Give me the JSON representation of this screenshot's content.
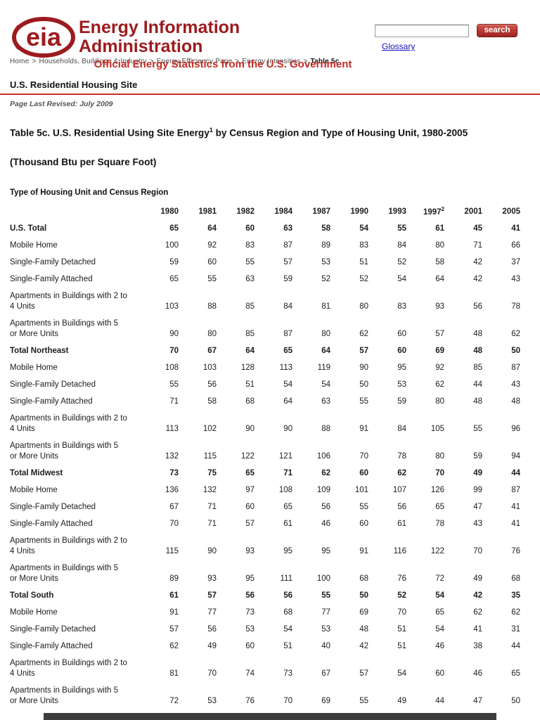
{
  "header": {
    "logo_text": "eia",
    "title": "Energy Information Administration",
    "subtitle": "Official Energy Statistics from the U.S. Government",
    "search": {
      "value": "",
      "button_label": "search",
      "glossary_label": "Glossary"
    }
  },
  "breadcrumb": {
    "separator": ">",
    "items": [
      "Home",
      "Households, Buildings & Industry",
      "Energy Efficiency Page",
      "Energy Intensities"
    ],
    "current": "Table 5c"
  },
  "page": {
    "section_title": "U.S. Residential Housing Site",
    "last_revised": "Page Last Revised: July 2009",
    "table_title": "Table 5c. U.S. Residential Using Site Energy",
    "table_title_superscript": "1",
    "table_title_rest": " by Census Region and Type of Housing Unit, 1980-2005",
    "units_line": "(Thousand Btu per Square Foot)"
  },
  "table": {
    "corner_label": "Type of Housing Unit  and Census Region",
    "years": [
      "1980",
      "1981",
      "1982",
      "1984",
      "1987",
      "1990",
      "1993",
      "1997",
      "2001",
      "2005"
    ],
    "year_superscript": {
      "index": 7,
      "text": "2"
    },
    "rows": [
      {
        "label_lines": [
          "U.S. Total"
        ],
        "bold": true,
        "values": [
          65,
          64,
          60,
          63,
          58,
          54,
          55,
          61,
          45,
          41
        ]
      },
      {
        "label_lines": [
          "Mobile Home"
        ],
        "bold": false,
        "values": [
          100,
          92,
          83,
          87,
          89,
          83,
          84,
          80,
          71,
          66
        ]
      },
      {
        "label_lines": [
          "Single-Family Detached"
        ],
        "bold": false,
        "values": [
          59,
          60,
          55,
          57,
          53,
          51,
          52,
          58,
          42,
          37
        ]
      },
      {
        "label_lines": [
          "Single-Family Attached"
        ],
        "bold": false,
        "values": [
          65,
          55,
          63,
          59,
          52,
          52,
          54,
          64,
          42,
          43
        ]
      },
      {
        "label_lines": [
          "Apartments in Buildings with 2 to",
          "4 Units"
        ],
        "bold": false,
        "values": [
          103,
          88,
          85,
          84,
          81,
          80,
          83,
          93,
          56,
          78
        ]
      },
      {
        "label_lines": [
          "Apartments in Buildings with 5",
          "or More Units"
        ],
        "bold": false,
        "values": [
          90,
          80,
          85,
          87,
          80,
          62,
          60,
          57,
          48,
          62
        ]
      },
      {
        "label_lines": [
          "Total Northeast"
        ],
        "bold": true,
        "values": [
          70,
          67,
          64,
          65,
          64,
          57,
          60,
          69,
          48,
          50
        ]
      },
      {
        "label_lines": [
          "Mobile Home"
        ],
        "bold": false,
        "values": [
          108,
          103,
          128,
          113,
          119,
          90,
          95,
          92,
          85,
          87
        ]
      },
      {
        "label_lines": [
          "Single-Family Detached"
        ],
        "bold": false,
        "values": [
          55,
          56,
          51,
          54,
          54,
          50,
          53,
          62,
          44,
          43
        ]
      },
      {
        "label_lines": [
          "Single-Family Attached"
        ],
        "bold": false,
        "values": [
          71,
          58,
          68,
          64,
          63,
          55,
          59,
          80,
          48,
          48
        ]
      },
      {
        "label_lines": [
          "Apartments in Buildings with 2 to",
          "4 Units"
        ],
        "bold": false,
        "values": [
          113,
          102,
          90,
          90,
          88,
          91,
          84,
          105,
          55,
          96
        ]
      },
      {
        "label_lines": [
          "Apartments in Buildings with 5",
          "or More Units"
        ],
        "bold": false,
        "values": [
          132,
          115,
          122,
          121,
          106,
          70,
          78,
          80,
          59,
          94
        ]
      },
      {
        "label_lines": [
          "Total Midwest"
        ],
        "bold": true,
        "values": [
          73,
          75,
          65,
          71,
          62,
          60,
          62,
          70,
          49,
          44
        ]
      },
      {
        "label_lines": [
          "Mobile Home"
        ],
        "bold": false,
        "values": [
          136,
          132,
          97,
          108,
          109,
          101,
          107,
          126,
          99,
          87
        ]
      },
      {
        "label_lines": [
          "Single-Family Detached"
        ],
        "bold": false,
        "values": [
          67,
          71,
          60,
          65,
          56,
          55,
          56,
          65,
          47,
          41
        ]
      },
      {
        "label_lines": [
          "Single-Family Attached"
        ],
        "bold": false,
        "values": [
          70,
          71,
          57,
          61,
          46,
          60,
          61,
          78,
          43,
          41
        ]
      },
      {
        "label_lines": [
          "Apartments in Buildings with 2 to",
          "4 Units"
        ],
        "bold": false,
        "values": [
          115,
          90,
          93,
          95,
          95,
          91,
          116,
          122,
          70,
          76
        ]
      },
      {
        "label_lines": [
          "Apartments in Buildings with 5",
          "or More Units"
        ],
        "bold": false,
        "values": [
          89,
          93,
          95,
          111,
          100,
          68,
          76,
          72,
          49,
          68
        ]
      },
      {
        "label_lines": [
          "Total South"
        ],
        "bold": true,
        "values": [
          61,
          57,
          56,
          56,
          55,
          50,
          52,
          54,
          42,
          35
        ]
      },
      {
        "label_lines": [
          "Mobile Home"
        ],
        "bold": false,
        "values": [
          91,
          77,
          73,
          68,
          77,
          69,
          70,
          65,
          62,
          62
        ]
      },
      {
        "label_lines": [
          "Single-Family Detached"
        ],
        "bold": false,
        "values": [
          57,
          56,
          53,
          54,
          53,
          48,
          51,
          54,
          41,
          31
        ]
      },
      {
        "label_lines": [
          "Single-Family Attached"
        ],
        "bold": false,
        "values": [
          62,
          49,
          60,
          51,
          40,
          42,
          51,
          46,
          38,
          44
        ]
      },
      {
        "label_lines": [
          "Apartments in Buildings with 2 to",
          "4 Units"
        ],
        "bold": false,
        "values": [
          81,
          70,
          74,
          73,
          67,
          57,
          54,
          60,
          46,
          65
        ]
      },
      {
        "label_lines": [
          "Apartments in Buildings with 5",
          "or More Units"
        ],
        "bold": false,
        "values": [
          72,
          53,
          76,
          70,
          69,
          55,
          49,
          44,
          47,
          50
        ]
      }
    ]
  },
  "colors": {
    "brand_red": "#9c1b1e",
    "accent_red": "#c22b22",
    "rule_red": "#cc2b26",
    "link_blue": "#1111bb",
    "text": "#1c1c1c",
    "footer_bar": "#3d3d3d"
  }
}
